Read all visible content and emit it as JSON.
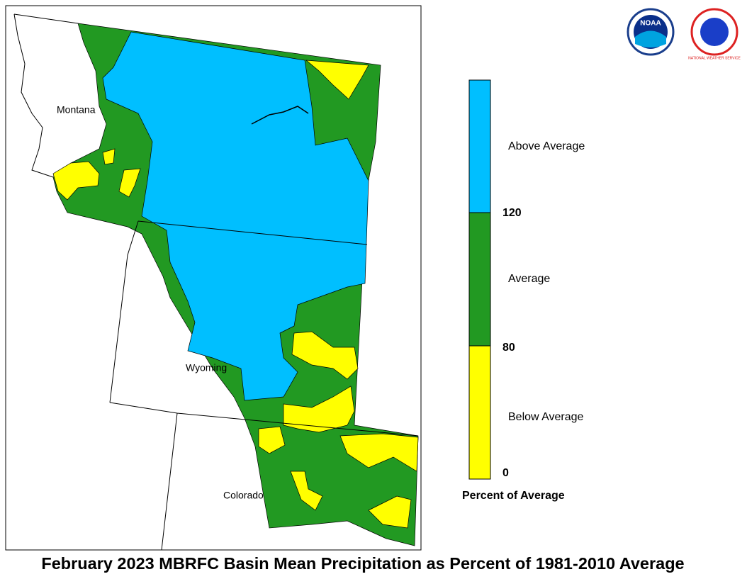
{
  "title": "February 2023 MBRFC Basin Mean Precipitation as Percent of 1981-2010 Average",
  "map": {
    "labels": [
      "Montana",
      "Wyoming",
      "Colorado"
    ]
  },
  "legend": {
    "title": "Percent of Average",
    "categories": [
      "Above Average",
      "Average",
      "Below Average"
    ],
    "colors": [
      "#00bfff",
      "#229922",
      "#ffff00"
    ],
    "ticks": [
      120,
      80,
      0
    ]
  },
  "logos": {
    "noaa": "NOAA",
    "nws": "NATIONAL WEATHER SERVICE"
  }
}
